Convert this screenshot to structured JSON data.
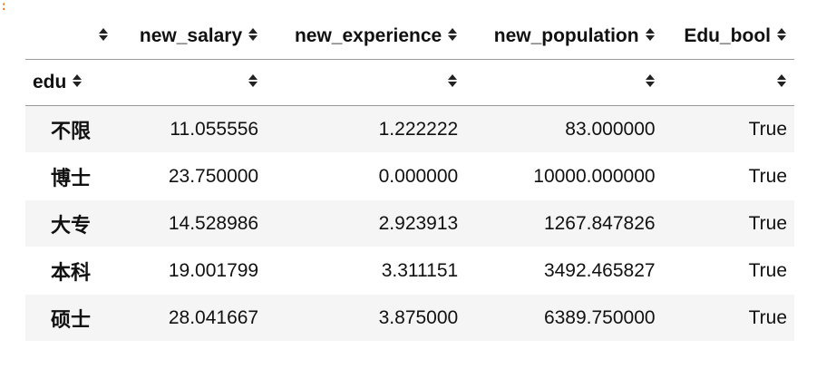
{
  "output_prompt_mark": ":",
  "table": {
    "header_columns": [
      "",
      "new_salary",
      "new_experience",
      "new_population",
      "Edu_bool"
    ],
    "index_name": "edu",
    "rows": [
      {
        "index": "不限",
        "new_salary": "11.055556",
        "new_experience": "1.222222",
        "new_population": "83.000000",
        "edu_bool": "True"
      },
      {
        "index": "博士",
        "new_salary": "23.750000",
        "new_experience": "0.000000",
        "new_population": "10000.000000",
        "edu_bool": "True"
      },
      {
        "index": "大专",
        "new_salary": "14.528986",
        "new_experience": "2.923913",
        "new_population": "1267.847826",
        "edu_bool": "True"
      },
      {
        "index": "本科",
        "new_salary": "19.001799",
        "new_experience": "3.311151",
        "new_population": "3492.465827",
        "edu_bool": "True"
      },
      {
        "index": "硕士",
        "new_salary": "28.041667",
        "new_experience": "3.875000",
        "new_population": "6389.750000",
        "edu_bool": "True"
      }
    ],
    "sort_icon": "sort-updown-icon"
  },
  "colors": {
    "prompt_mark": "#e06c1a",
    "row_stripe": "#f5f5f5",
    "border": "#9a9a9a"
  }
}
